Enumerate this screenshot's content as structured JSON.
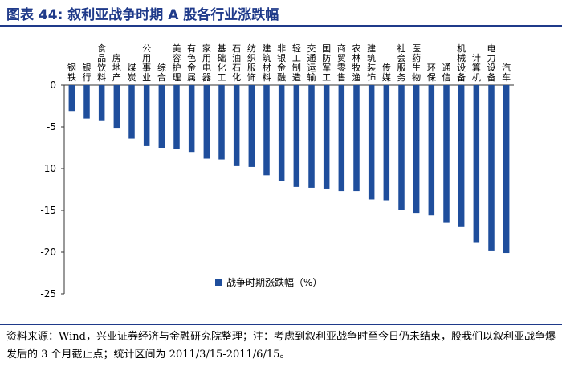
{
  "title": "图表 44: 叙利亚战争时期 A 股各行业涨跌幅",
  "footer": "资料来源：Wind，兴业证券经济与金融研究院整理；注：考虑到叙利亚战争时至今日仍未结束，股我们以叙利亚战争爆发后的 3 个月截止点；统计区间为 2011/3/15-2011/6/15。",
  "colors": {
    "bar": "#1f4e9c",
    "title": "#1f3a8a"
  },
  "chart_data": {
    "type": "bar",
    "categories": [
      "钢铁",
      "银行",
      "食品饮料",
      "房地产",
      "煤炭",
      "公用事业",
      "综合",
      "美容护理",
      "有色金属",
      "家用电器",
      "基础化工",
      "石油石化",
      "纺织服饰",
      "建筑材料",
      "非银金融",
      "轻工制造",
      "交通运输",
      "国防军工",
      "商贸零售",
      "农林牧渔",
      "建筑装饰",
      "传媒",
      "社会服务",
      "医药生物",
      "环保",
      "通信",
      "机械设备",
      "计算机",
      "电力设备",
      "汽车"
    ],
    "series": [
      {
        "name": "战争时期涨跌幅（%）",
        "values": [
          -3.1,
          -4.0,
          -4.3,
          -5.2,
          -6.4,
          -7.3,
          -7.5,
          -7.6,
          -8.0,
          -8.8,
          -8.9,
          -9.7,
          -9.8,
          -10.8,
          -11.5,
          -12.2,
          -12.3,
          -12.4,
          -12.7,
          -12.7,
          -13.7,
          -13.8,
          -15.0,
          -15.3,
          -15.6,
          -16.5,
          -17.0,
          -18.8,
          -19.8,
          -20.1
        ]
      }
    ],
    "ylim": [
      -25,
      0
    ],
    "yticks": [
      0,
      -5,
      -10,
      -15,
      -20,
      -25
    ],
    "legend_position": "bottom-center",
    "grid": false
  }
}
